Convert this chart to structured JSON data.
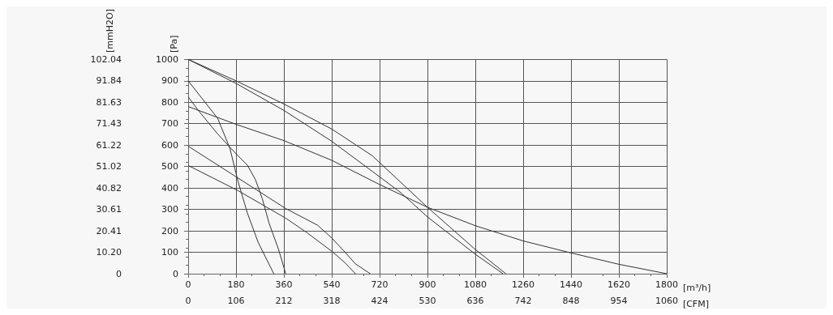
{
  "chart_data": {
    "type": "line",
    "xlabel": "[m³/h]",
    "x2label": "[CFM]",
    "ylabel": "[Pa]",
    "y2label": "[mmH2O]",
    "xlim": [
      0,
      1800
    ],
    "xticks": [
      0,
      180,
      360,
      540,
      720,
      900,
      1080,
      1260,
      1440,
      1620,
      1800
    ],
    "x2lim": [
      0,
      1060
    ],
    "x2ticks": [
      0,
      106,
      212,
      318,
      424,
      530,
      636,
      742,
      848,
      954,
      1060
    ],
    "ylim": [
      0,
      1000
    ],
    "yticks": [
      0,
      100,
      200,
      300,
      400,
      500,
      600,
      700,
      800,
      900,
      1000
    ],
    "y2lim": [
      0,
      102.04
    ],
    "y2ticks": [
      0,
      {
        "value": 10.2,
        "label": "10.20"
      },
      20.41,
      30.61,
      40.82,
      51.02,
      61.22,
      71.43,
      81.63,
      91.84,
      102.04
    ],
    "grid": true,
    "marker": "none",
    "line_style": "solid",
    "series": [
      {
        "color": "#333333",
        "x": [
          0,
          180,
          360,
          540,
          692,
          900,
          1080,
          1195
        ],
        "values": [
          1000,
          900,
          792,
          675,
          551,
          310,
          113,
          0
        ]
      },
      {
        "color": "#333333",
        "x": [
          0,
          180,
          360,
          540,
          692,
          800,
          900,
          1080,
          1184
        ],
        "values": [
          1000,
          888,
          762,
          618,
          478,
          378,
          265,
          91,
          0
        ]
      },
      {
        "color": "#333333",
        "x": [
          0,
          180,
          360,
          540,
          720,
          900,
          1080,
          1260,
          1440,
          1620,
          1800
        ],
        "values": [
          780,
          697,
          621,
          529,
          416,
          310,
          224,
          153,
          97,
          44,
          0
        ]
      },
      {
        "color": "#333333",
        "x": [
          0,
          111,
          157,
          187,
          223,
          263,
          322
        ],
        "values": [
          900,
          725,
          585,
          433,
          282,
          147,
          0
        ]
      },
      {
        "color": "#333333",
        "x": [
          0,
          40,
          111,
          157,
          187,
          223,
          253,
          279,
          304,
          340,
          367
        ],
        "values": [
          825,
          759,
          652,
          590,
          551,
          506,
          439,
          349,
          237,
          113,
          0
        ]
      },
      {
        "color": "#333333",
        "x": [
          0,
          367,
          487,
          538,
          589,
          629,
          685
        ],
        "values": [
          595,
          304,
          226,
          169,
          102,
          46,
          0
        ]
      },
      {
        "color": "#333333",
        "x": [
          0,
          187,
          367,
          446,
          543,
          589,
          629
        ],
        "values": [
          505,
          388,
          259,
          192,
          102,
          52,
          0
        ]
      }
    ]
  }
}
